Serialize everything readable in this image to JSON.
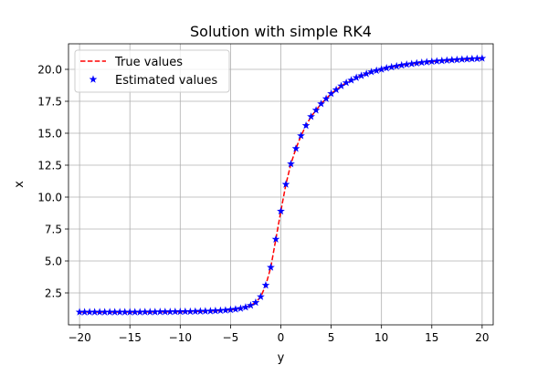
{
  "chart_data": {
    "type": "line",
    "title": "Solution with simple RK4",
    "xlabel": "y",
    "ylabel": "x",
    "xlim": [
      -21.1,
      21.1
    ],
    "ylim": [
      0.0,
      22.0
    ],
    "grid": true,
    "legend_position": "top-left",
    "x_ticks": [
      "−20",
      "−15",
      "−10",
      "−5",
      "0",
      "5",
      "10",
      "15",
      "20"
    ],
    "y_ticks": [
      "2.5",
      "5.0",
      "7.5",
      "10.0",
      "12.5",
      "15.0",
      "17.5",
      "20.0"
    ],
    "series": [
      {
        "name": "True values",
        "style": "dashed-line",
        "color": "#ff0000",
        "x": [
          -20.0,
          -19.5,
          -19.0,
          -18.5,
          -18.0,
          -17.5,
          -17.0,
          -16.5,
          -16.0,
          -15.5,
          -15.0,
          -14.5,
          -14.0,
          -13.5,
          -13.0,
          -12.5,
          -12.0,
          -11.5,
          -11.0,
          -10.5,
          -10.0,
          -9.5,
          -9.0,
          -8.5,
          -8.0,
          -7.5,
          -7.0,
          -6.5,
          -6.0,
          -5.5,
          -5.0,
          -4.5,
          -4.0,
          -3.5,
          -3.0,
          -2.5,
          -2.0,
          -1.5,
          -1.0,
          -0.5,
          0.0,
          0.5,
          1.0,
          1.5,
          2.0,
          2.5,
          3.0,
          3.5,
          4.0,
          4.5,
          5.0,
          5.5,
          6.0,
          6.5,
          7.0,
          7.5,
          8.0,
          8.5,
          9.0,
          9.5,
          10.0,
          10.5,
          11.0,
          11.5,
          12.0,
          12.5,
          13.0,
          13.5,
          14.0,
          14.5,
          15.0,
          15.5,
          16.0,
          16.5,
          17.0,
          17.5,
          18.0,
          18.5,
          19.0,
          19.5,
          20.0
        ],
        "y": [
          1.0,
          1.0,
          1.0,
          1.0,
          1.0,
          1.0,
          1.0,
          1.0,
          1.0,
          1.0,
          1.0,
          1.0,
          1.0,
          1.01,
          1.01,
          1.01,
          1.02,
          1.02,
          1.02,
          1.03,
          1.03,
          1.04,
          1.04,
          1.05,
          1.06,
          1.07,
          1.08,
          1.1,
          1.12,
          1.14,
          1.18,
          1.22,
          1.28,
          1.38,
          1.52,
          1.75,
          2.2,
          3.1,
          4.5,
          6.7,
          8.9,
          11.0,
          12.6,
          13.8,
          14.8,
          15.6,
          16.3,
          16.8,
          17.3,
          17.7,
          18.1,
          18.4,
          18.7,
          18.95,
          19.15,
          19.35,
          19.5,
          19.65,
          19.8,
          19.9,
          20.0,
          20.1,
          20.18,
          20.25,
          20.32,
          20.38,
          20.43,
          20.48,
          20.53,
          20.57,
          20.61,
          20.64,
          20.67,
          20.7,
          20.73,
          20.75,
          20.78,
          20.8,
          20.82,
          20.84,
          20.86
        ]
      },
      {
        "name": "Estimated values",
        "style": "star-markers",
        "color": "#0000ff",
        "x": [
          -20.0,
          -19.5,
          -19.0,
          -18.5,
          -18.0,
          -17.5,
          -17.0,
          -16.5,
          -16.0,
          -15.5,
          -15.0,
          -14.5,
          -14.0,
          -13.5,
          -13.0,
          -12.5,
          -12.0,
          -11.5,
          -11.0,
          -10.5,
          -10.0,
          -9.5,
          -9.0,
          -8.5,
          -8.0,
          -7.5,
          -7.0,
          -6.5,
          -6.0,
          -5.5,
          -5.0,
          -4.5,
          -4.0,
          -3.5,
          -3.0,
          -2.5,
          -2.0,
          -1.5,
          -1.0,
          -0.5,
          0.0,
          0.5,
          1.0,
          1.5,
          2.0,
          2.5,
          3.0,
          3.5,
          4.0,
          4.5,
          5.0,
          5.5,
          6.0,
          6.5,
          7.0,
          7.5,
          8.0,
          8.5,
          9.0,
          9.5,
          10.0,
          10.5,
          11.0,
          11.5,
          12.0,
          12.5,
          13.0,
          13.5,
          14.0,
          14.5,
          15.0,
          15.5,
          16.0,
          16.5,
          17.0,
          17.5,
          18.0,
          18.5,
          19.0,
          19.5,
          20.0
        ],
        "y": [
          1.0,
          1.0,
          1.0,
          1.0,
          1.0,
          1.0,
          1.0,
          1.0,
          1.0,
          1.0,
          1.0,
          1.0,
          1.0,
          1.01,
          1.01,
          1.01,
          1.02,
          1.02,
          1.02,
          1.03,
          1.03,
          1.04,
          1.04,
          1.05,
          1.06,
          1.07,
          1.08,
          1.1,
          1.12,
          1.14,
          1.18,
          1.22,
          1.28,
          1.38,
          1.52,
          1.75,
          2.2,
          3.1,
          4.5,
          6.7,
          8.9,
          11.0,
          12.6,
          13.8,
          14.8,
          15.6,
          16.3,
          16.8,
          17.3,
          17.7,
          18.1,
          18.4,
          18.7,
          18.95,
          19.15,
          19.35,
          19.5,
          19.65,
          19.8,
          19.9,
          20.0,
          20.1,
          20.18,
          20.25,
          20.32,
          20.38,
          20.43,
          20.48,
          20.53,
          20.57,
          20.61,
          20.64,
          20.67,
          20.7,
          20.73,
          20.75,
          20.78,
          20.8,
          20.82,
          20.84,
          20.86
        ]
      }
    ]
  }
}
